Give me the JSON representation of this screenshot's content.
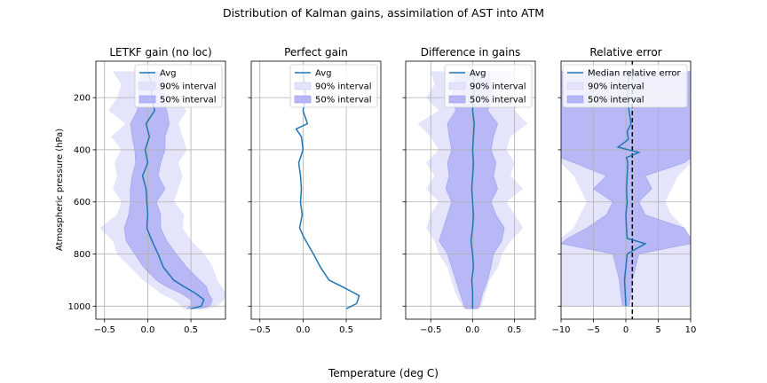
{
  "figure": {
    "suptitle": "Distribution of Kalman gains, assimilation of AST into ATM",
    "shared_xlabel": "Temperature (deg C)",
    "shared_ylabel": "Atmospheric pressure (hPa)"
  },
  "colors": {
    "line": "#1f77b4",
    "band90": "#e3e3fb",
    "band50": "#b6b6f7",
    "grid": "#b0b0b0",
    "reference": "#000000"
  },
  "chart_data": [
    {
      "type": "line",
      "title": "LETKF gain (no loc)",
      "xlabel": "",
      "ylabel": "Atmospheric pressure (hPa)",
      "xlim": [
        -0.6,
        0.9
      ],
      "ylim": [
        1050,
        60
      ],
      "xticks": [
        -0.5,
        0.0,
        0.5
      ],
      "xticklabels": [
        "−0.5",
        "0.0",
        "0.5"
      ],
      "yticks": [
        200,
        400,
        600,
        800,
        1000
      ],
      "yticklabels": [
        "200",
        "400",
        "600",
        "800",
        "1000"
      ],
      "grid": true,
      "legend_position": "top-right",
      "legend": [
        "Avg",
        "90% interval",
        "50% interval"
      ],
      "y": [
        100,
        150,
        200,
        250,
        300,
        350,
        400,
        450,
        500,
        550,
        600,
        650,
        700,
        750,
        800,
        850,
        900,
        925,
        950,
        975,
        1000,
        1010
      ],
      "series": [
        {
          "name": "Avg",
          "values": [
            0.0,
            0.05,
            0.04,
            0.08,
            -0.02,
            0.02,
            -0.03,
            0.0,
            -0.06,
            -0.02,
            -0.01,
            0.0,
            -0.01,
            0.05,
            0.12,
            0.18,
            0.3,
            0.42,
            0.55,
            0.65,
            0.62,
            0.5
          ]
        },
        {
          "name": "50% interval",
          "lower": [
            -0.05,
            -0.12,
            -0.1,
            -0.12,
            -0.2,
            -0.18,
            -0.15,
            -0.14,
            -0.18,
            -0.2,
            -0.2,
            -0.22,
            -0.27,
            -0.25,
            -0.15,
            -0.05,
            0.1,
            0.22,
            0.38,
            0.5,
            0.5,
            0.45
          ],
          "upper": [
            0.15,
            0.2,
            0.18,
            0.22,
            0.25,
            0.2,
            0.2,
            0.15,
            0.12,
            0.2,
            0.1,
            0.15,
            0.15,
            0.22,
            0.33,
            0.45,
            0.6,
            0.68,
            0.7,
            0.75,
            0.72,
            0.6
          ]
        },
        {
          "name": "90% interval",
          "lower": [
            -0.4,
            -0.3,
            -0.35,
            -0.45,
            -0.25,
            -0.42,
            -0.3,
            -0.38,
            -0.35,
            -0.4,
            -0.3,
            -0.35,
            -0.55,
            -0.4,
            -0.35,
            -0.2,
            -0.05,
            0.05,
            0.15,
            0.3,
            0.4,
            0.4
          ],
          "upper": [
            0.3,
            0.35,
            0.3,
            0.45,
            0.35,
            0.4,
            0.45,
            0.35,
            0.4,
            0.35,
            0.3,
            0.42,
            0.4,
            0.5,
            0.65,
            0.75,
            0.8,
            0.85,
            0.9,
            0.88,
            0.8,
            0.7
          ]
        }
      ]
    },
    {
      "type": "line",
      "title": "Perfect gain",
      "xlabel": "",
      "ylabel": "",
      "xlim": [
        -0.6,
        0.9
      ],
      "ylim": [
        1050,
        60
      ],
      "xticks": [
        -0.5,
        0.0,
        0.5
      ],
      "xticklabels": [
        "−0.5",
        "0.0",
        "0.5"
      ],
      "yticks": [
        200,
        400,
        600,
        800,
        1000
      ],
      "yticklabels": [
        "",
        "",
        "",
        "",
        ""
      ],
      "grid": true,
      "legend_position": "top-right",
      "legend": [
        "Avg",
        "90% interval",
        "50% interval"
      ],
      "y": [
        100,
        150,
        200,
        250,
        300,
        320,
        350,
        400,
        450,
        500,
        550,
        600,
        650,
        700,
        730,
        760,
        800,
        850,
        900,
        930,
        960,
        990,
        1010
      ],
      "series": [
        {
          "name": "Avg",
          "values": [
            0.0,
            0.02,
            0.03,
            0.0,
            0.05,
            -0.08,
            -0.02,
            0.0,
            -0.05,
            -0.03,
            -0.02,
            -0.03,
            -0.01,
            -0.04,
            0.0,
            0.05,
            0.12,
            0.2,
            0.3,
            0.48,
            0.65,
            0.62,
            0.5
          ]
        }
      ]
    },
    {
      "type": "line",
      "title": "Difference in gains",
      "xlabel": "",
      "ylabel": "",
      "xlim": [
        -0.8,
        0.75
      ],
      "ylim": [
        1050,
        60
      ],
      "xticks": [
        -0.5,
        0.0,
        0.5
      ],
      "xticklabels": [
        "−0.5",
        "0.0",
        "0.5"
      ],
      "yticks": [
        200,
        400,
        600,
        800,
        1000
      ],
      "yticklabels": [
        "",
        "",
        "",
        "",
        ""
      ],
      "grid": true,
      "legend_position": "top-right",
      "legend": [
        "Avg",
        "90% interval",
        "50% interval"
      ],
      "y": [
        100,
        150,
        200,
        250,
        300,
        350,
        400,
        450,
        500,
        550,
        600,
        650,
        700,
        750,
        800,
        850,
        900,
        950,
        1000,
        1010
      ],
      "series": [
        {
          "name": "Avg",
          "values": [
            0.0,
            0.02,
            0.01,
            0.0,
            0.02,
            0.01,
            0.0,
            0.01,
            0.0,
            -0.01,
            0.0,
            0.01,
            0.0,
            -0.02,
            0.0,
            0.01,
            -0.01,
            0.0,
            0.0,
            0.0
          ]
        },
        {
          "name": "50% interval",
          "lower": [
            -0.2,
            -0.22,
            -0.25,
            -0.2,
            -0.3,
            -0.28,
            -0.25,
            -0.3,
            -0.28,
            -0.32,
            -0.25,
            -0.3,
            -0.35,
            -0.4,
            -0.3,
            -0.25,
            -0.2,
            -0.15,
            -0.1,
            -0.08
          ],
          "upper": [
            0.2,
            0.22,
            0.25,
            0.18,
            0.3,
            0.25,
            0.22,
            0.28,
            0.25,
            0.3,
            0.22,
            0.28,
            0.38,
            0.35,
            0.25,
            0.22,
            0.18,
            0.12,
            0.08,
            0.06
          ]
        },
        {
          "name": "90% interval",
          "lower": [
            -0.5,
            -0.45,
            -0.55,
            -0.4,
            -0.65,
            -0.5,
            -0.4,
            -0.55,
            -0.45,
            -0.55,
            -0.4,
            -0.5,
            -0.55,
            -0.45,
            -0.4,
            -0.3,
            -0.25,
            -0.2,
            -0.12,
            -0.1
          ],
          "upper": [
            0.5,
            0.45,
            0.55,
            0.5,
            0.65,
            0.45,
            0.4,
            0.5,
            0.45,
            0.6,
            0.4,
            0.5,
            0.6,
            0.45,
            0.35,
            0.3,
            0.2,
            0.15,
            0.1,
            0.08
          ]
        }
      ]
    },
    {
      "type": "line",
      "title": "Relative error",
      "xlabel": "",
      "ylabel": "",
      "xlim": [
        -10,
        10
      ],
      "ylim": [
        1050,
        60
      ],
      "xticks": [
        -10,
        -5,
        0,
        5,
        10
      ],
      "xticklabels": [
        "−10",
        "−5",
        "0",
        "5",
        "10"
      ],
      "yticks": [
        200,
        400,
        600,
        800,
        1000
      ],
      "yticklabels": [
        "",
        "",
        "",
        "",
        ""
      ],
      "grid": true,
      "legend_position": "top-left",
      "legend": [
        "Median relative error",
        "90% interval",
        "50% interval"
      ],
      "reference_x": 1,
      "y": [
        100,
        150,
        200,
        250,
        300,
        330,
        360,
        390,
        410,
        430,
        450,
        500,
        550,
        600,
        650,
        700,
        740,
        760,
        800,
        850,
        900,
        950,
        1000
      ],
      "series": [
        {
          "name": "Median relative error",
          "values": [
            0.5,
            0.3,
            0.2,
            0.5,
            0.8,
            0.2,
            0.4,
            -1.2,
            2.0,
            0.1,
            0.3,
            0.2,
            0.1,
            0.2,
            0.0,
            0.1,
            0.2,
            3.0,
            0.2,
            0.0,
            -0.2,
            -0.1,
            0.0
          ]
        },
        {
          "name": "50% interval",
          "lower": [
            -10,
            -10,
            -10,
            -10,
            -10,
            -10,
            -10,
            -10,
            -10,
            -10,
            -8,
            -3,
            -5,
            -2,
            -3,
            -6,
            -9,
            -10,
            -2,
            -1.5,
            -1,
            -0.8,
            -0.5
          ],
          "upper": [
            10,
            10,
            10,
            10,
            10,
            10,
            10,
            10,
            10,
            10,
            9,
            3,
            4,
            2,
            3,
            9,
            10,
            10,
            2,
            1.5,
            1,
            0.8,
            0.5
          ]
        },
        {
          "name": "90% interval",
          "lower": [
            -10,
            -10,
            -10,
            -10,
            -10,
            -10,
            -10,
            -10,
            -10,
            -10,
            -10,
            -8,
            -7,
            -6,
            -7,
            -8,
            -10,
            -10,
            -10,
            -10,
            -10,
            -10,
            -10
          ],
          "upper": [
            10,
            10,
            10,
            10,
            10,
            10,
            10,
            10,
            10,
            10,
            10,
            8,
            7,
            6,
            7,
            9,
            10,
            10,
            10,
            10,
            10,
            10,
            10
          ]
        }
      ]
    }
  ]
}
